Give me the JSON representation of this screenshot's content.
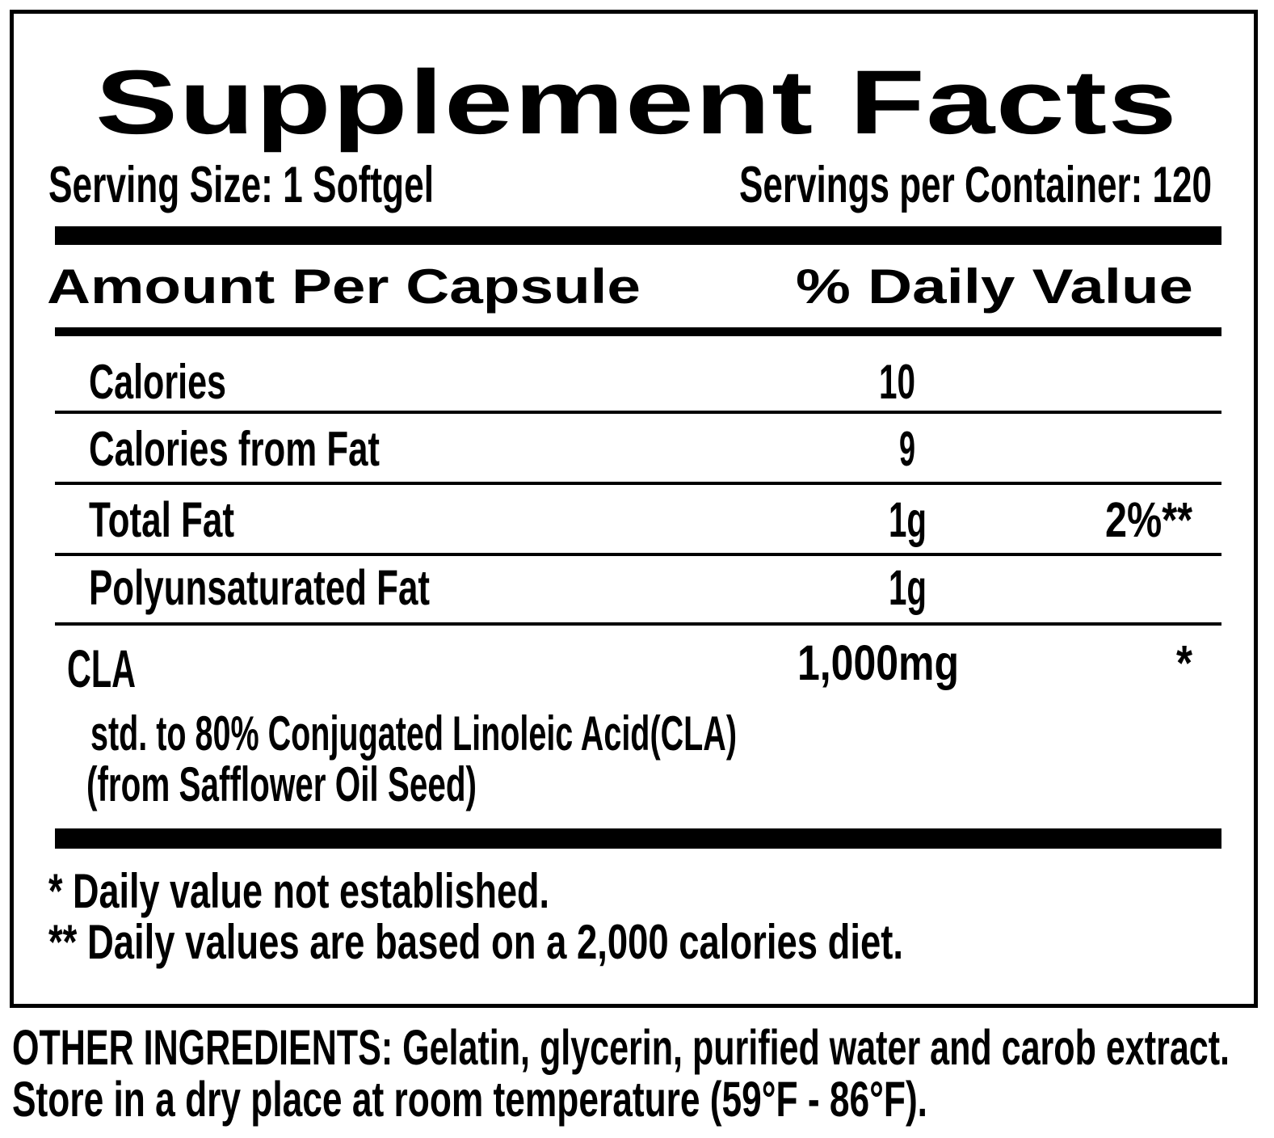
{
  "title": "Supplement Facts",
  "serving_size": "Serving Size: 1 Softgel",
  "servings_per_container": "Servings per Container: 120",
  "header": {
    "amount": "Amount Per Capsule",
    "daily_value": "% Daily Value"
  },
  "rows": [
    {
      "name": "Calories",
      "amount": "10",
      "dv": ""
    },
    {
      "name": "Calories from Fat",
      "amount": "9",
      "dv": ""
    },
    {
      "name": "Total Fat",
      "amount": "1g",
      "dv": "2%**"
    },
    {
      "name": "Polyunsaturated Fat",
      "amount": "1g",
      "dv": ""
    },
    {
      "name": "CLA",
      "amount": "1,000mg",
      "dv": "*",
      "detail": [
        "std. to 80% Conjugated Linoleic Acid(CLA)",
        "(from Safflower Oil Seed)"
      ]
    }
  ],
  "footnotes": [
    "* Daily value not established.",
    "** Daily values are based on a 2,000 calories diet."
  ],
  "other": [
    "OTHER INGREDIENTS: Gelatin,  glycerin,  purified  water and carob extract.",
    "Store in a dry place at room temperature (59°F - 86°F)."
  ]
}
